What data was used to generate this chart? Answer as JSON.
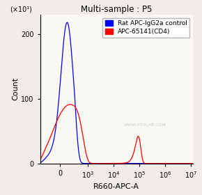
{
  "title": "Multi-sample : P5",
  "xlabel": "R660-APC-A",
  "ylabel": "Count",
  "y_scale_label": "(×10¹)",
  "ylim": [
    0,
    230
  ],
  "yticks": [
    0,
    100,
    200
  ],
  "background_color": "#f0ede8",
  "plot_bg_color": "#faf8f3",
  "legend_items": [
    {
      "label": "Rat APC-IgG2a control",
      "color": "blue"
    },
    {
      "label": "APC-65141(CD4)",
      "color": "red"
    }
  ],
  "watermark": "WWW.PTGLAB.COM"
}
